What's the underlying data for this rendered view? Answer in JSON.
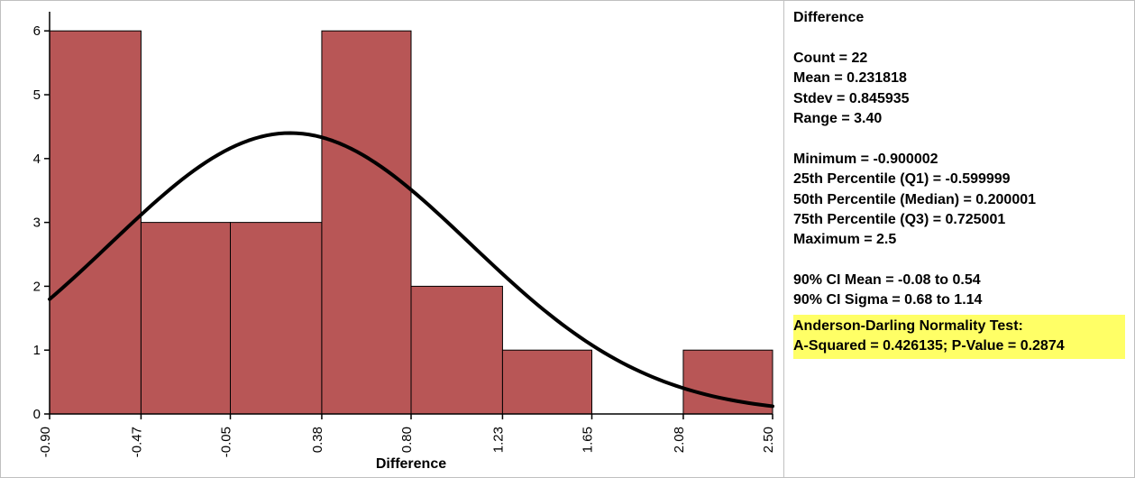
{
  "histogram": {
    "type": "histogram",
    "xlabel": "Difference",
    "bin_edges": [
      -0.9,
      -0.47,
      -0.05,
      0.38,
      0.8,
      1.23,
      1.65,
      2.08,
      2.5
    ],
    "bin_counts": [
      6,
      3,
      3,
      6,
      2,
      1,
      0,
      1
    ],
    "bar_fill": "#b85656",
    "bar_stroke": "#000000",
    "bar_stroke_width": 1,
    "axis_color": "#000000",
    "background_color": "#ffffff",
    "y_ticks": [
      0,
      1,
      2,
      3,
      4,
      5,
      6
    ],
    "ylim": [
      0,
      6.3
    ],
    "xlabel_fontsize": 16,
    "tick_fontsize": 15,
    "tick_font_family": "Arial, Helvetica, sans-serif",
    "xlabel_font_family": "Arial, Helvetica, sans-serif",
    "curve": {
      "stroke": "#000000",
      "stroke_width": 4,
      "mean": 0.231818,
      "stdev": 0.845935,
      "peak_height_y": 4.4
    }
  },
  "stats": {
    "title": "Difference",
    "count": "22",
    "mean": "0.231818",
    "stdev": "0.845935",
    "range": "3.40",
    "minimum": "-0.900002",
    "q1_label": "25th Percentile (Q1)",
    "q1": "-0.599999",
    "median_label": "50th Percentile (Median)",
    "median": "0.200001",
    "q3_label": "75th Percentile (Q3)",
    "q3": "0.725001",
    "maximum": "2.5",
    "ci_mean_label": "90% CI Mean",
    "ci_mean": "-0.08 to 0.54",
    "ci_sigma_label": "90% CI Sigma",
    "ci_sigma": "0.68 to 1.14",
    "normality_test_label": "Anderson-Darling Normality Test:",
    "a_squared": "0.426135",
    "p_value": "0.2874"
  }
}
